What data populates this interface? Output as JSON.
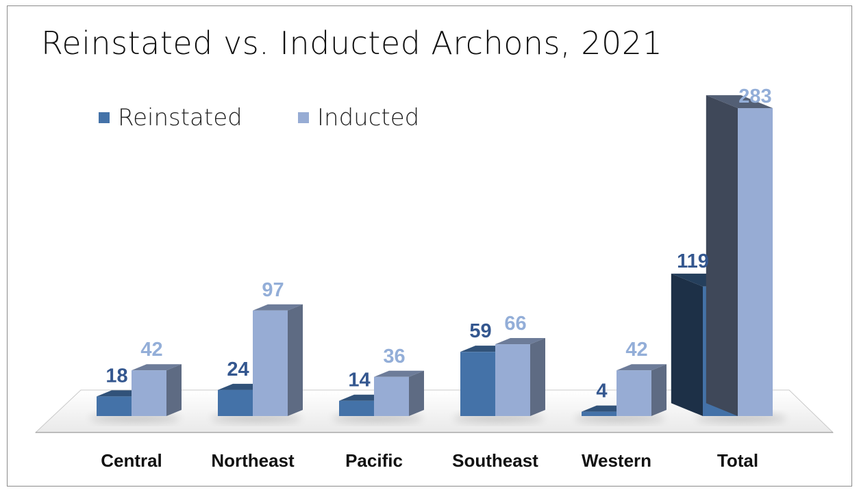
{
  "chart_data": {
    "type": "bar",
    "title": "Reinstated vs. Inducted Archons, 2021",
    "categories": [
      "Central",
      "Northeast",
      "Pacific",
      "Southeast",
      "Western",
      "Total"
    ],
    "series": [
      {
        "name": "Reinstated",
        "values": [
          18,
          24,
          14,
          59,
          4,
          119
        ],
        "color": "#4472a8"
      },
      {
        "name": "Inducted",
        "values": [
          42,
          97,
          36,
          66,
          42,
          283
        ],
        "color": "#97acd4"
      }
    ],
    "legend_position": "top-left",
    "three_d": true,
    "grid": false,
    "ylim": [
      0,
      283
    ]
  }
}
